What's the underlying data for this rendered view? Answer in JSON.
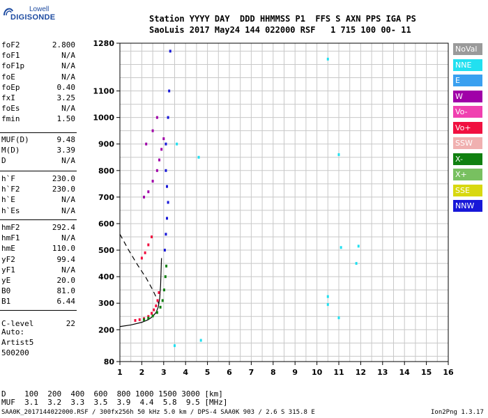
{
  "logo": {
    "line1": "Lowell",
    "line2": "DIGISONDE"
  },
  "header": {
    "row1": "Station YYYY DAY  DDD HHMMSS P1  FFS S AXN PPS IGA PS",
    "row2": "SaoLuis 2017 May24 144 022000 RSF   1 715 100 00- 11"
  },
  "params_group1": [
    {
      "key": "foF2",
      "value": "2.800"
    },
    {
      "key": "foF1",
      "value": "N/A"
    },
    {
      "key": "foF1p",
      "value": "N/A"
    },
    {
      "key": "foE",
      "value": "N/A"
    },
    {
      "key": "foEp",
      "value": "0.40"
    },
    {
      "key": "fxI",
      "value": "3.25"
    },
    {
      "key": "foEs",
      "value": "N/A"
    },
    {
      "key": "fmin",
      "value": "1.50"
    }
  ],
  "params_group2": [
    {
      "key": "MUF(D)",
      "value": "9.48"
    },
    {
      "key": "M(D)",
      "value": "3.39"
    },
    {
      "key": "D",
      "value": "N/A"
    }
  ],
  "params_group3": [
    {
      "key": "h`F",
      "value": "230.0"
    },
    {
      "key": "h`F2",
      "value": "230.0"
    },
    {
      "key": "h`E",
      "value": "N/A"
    },
    {
      "key": "h`Es",
      "value": "N/A"
    }
  ],
  "params_group4": [
    {
      "key": "hmF2",
      "value": "292.4"
    },
    {
      "key": "hmF1",
      "value": "N/A"
    },
    {
      "key": "hmE",
      "value": "110.0"
    },
    {
      "key": "yF2",
      "value": "99.4"
    },
    {
      "key": "yF1",
      "value": "N/A"
    },
    {
      "key": "yE",
      "value": "20.0"
    },
    {
      "key": "B0",
      "value": "81.0"
    },
    {
      "key": "B1",
      "value": "6.44"
    }
  ],
  "clevel": {
    "key": "C-level",
    "value": "22"
  },
  "autoscale": {
    "line1": "Auto:",
    "line2": "Artist5",
    "line3": "500200"
  },
  "legend": [
    {
      "label": "NoVal",
      "color": "#9a9a9a"
    },
    {
      "label": "NNE",
      "color": "#22e0f0"
    },
    {
      "label": "E",
      "color": "#3aa0f0"
    },
    {
      "label": "W",
      "color": "#a000a8"
    },
    {
      "label": "Vo-",
      "color": "#f040b0"
    },
    {
      "label": "Vo+",
      "color": "#f01040"
    },
    {
      "label": "SSW",
      "color": "#f0b0b0"
    },
    {
      "label": "X-",
      "color": "#108010"
    },
    {
      "label": "X+",
      "color": "#78c060"
    },
    {
      "label": "SSE",
      "color": "#d8d810"
    },
    {
      "label": "NNW",
      "color": "#1818d8"
    }
  ],
  "muf_table": {
    "row1": "D    100  200  400  600  800 1000 1500 3000 [km]",
    "row2": "MUF  3.1  3.2  3.3  3.5  3.9  4.4  5.8  9.5 [MHz]"
  },
  "footer": {
    "left": "SAA0K_2017144022000.RSF / 300fx256h 50 kHz 5.0 km / DPS-4 SAA0K 903 / 2.6 S 315.8 E",
    "right": "Ion2Png 1.3.17"
  },
  "chart_data": {
    "type": "scatter",
    "xlim": [
      1,
      16
    ],
    "ylim": [
      80,
      1280
    ],
    "x_ticks": [
      "1",
      "2",
      "3",
      "4",
      "5",
      "6",
      "7",
      "8",
      "9",
      "10",
      "11",
      "12",
      "13",
      "14",
      "15",
      "16"
    ],
    "y_ticks": [
      "80",
      "200",
      "300",
      "400",
      "500",
      "600",
      "700",
      "800",
      "900",
      "1000",
      "1100",
      "1280"
    ],
    "x_minor_step": 0.5,
    "y_grid_step": 50,
    "grid": true,
    "traces": [
      {
        "name": "o-trace",
        "color": "#f01040",
        "points": [
          [
            1.7,
            235
          ],
          [
            1.9,
            238
          ],
          [
            2.1,
            242
          ],
          [
            2.3,
            250
          ],
          [
            2.45,
            262
          ],
          [
            2.55,
            275
          ],
          [
            2.65,
            290
          ],
          [
            2.72,
            310
          ],
          [
            2.78,
            340
          ]
        ]
      },
      {
        "name": "x-trace",
        "color": "#108010",
        "points": [
          [
            2.1,
            238
          ],
          [
            2.3,
            244
          ],
          [
            2.5,
            252
          ],
          [
            2.7,
            265
          ],
          [
            2.85,
            285
          ],
          [
            2.95,
            310
          ],
          [
            3.02,
            350
          ],
          [
            3.08,
            400
          ],
          [
            3.12,
            440
          ]
        ]
      },
      {
        "name": "o-trace-2",
        "color": "#f01040",
        "points": [
          [
            2.0,
            470
          ],
          [
            2.15,
            490
          ],
          [
            2.3,
            520
          ],
          [
            2.45,
            550
          ]
        ]
      },
      {
        "name": "vertical-echo",
        "color": "#1818d8",
        "points": [
          [
            3.05,
            500
          ],
          [
            3.1,
            560
          ],
          [
            3.15,
            620
          ],
          [
            3.2,
            680
          ],
          [
            3.15,
            740
          ],
          [
            3.1,
            800
          ],
          [
            3.1,
            900
          ],
          [
            3.2,
            1000
          ],
          [
            3.25,
            1100
          ],
          [
            3.3,
            1250
          ]
        ]
      },
      {
        "name": "multi-hop",
        "color": "#a000a8",
        "points": [
          [
            2.1,
            700
          ],
          [
            2.3,
            720
          ],
          [
            2.5,
            760
          ],
          [
            2.7,
            800
          ],
          [
            2.8,
            840
          ],
          [
            2.9,
            880
          ],
          [
            3.0,
            920
          ],
          [
            2.2,
            900
          ],
          [
            2.5,
            950
          ],
          [
            2.7,
            1000
          ]
        ]
      },
      {
        "name": "sporadic",
        "color": "#22e0f0",
        "points": [
          [
            3.6,
            900
          ],
          [
            4.6,
            850
          ],
          [
            4.7,
            160
          ],
          [
            10.5,
            1220
          ],
          [
            11.0,
            860
          ],
          [
            11.1,
            510
          ],
          [
            11.8,
            450
          ],
          [
            11.9,
            515
          ],
          [
            10.5,
            325
          ],
          [
            10.5,
            295
          ],
          [
            11.0,
            245
          ],
          [
            3.5,
            140
          ]
        ]
      }
    ],
    "profile_solid": [
      [
        1.0,
        212
      ],
      [
        1.5,
        218
      ],
      [
        2.0,
        228
      ],
      [
        2.3,
        238
      ],
      [
        2.5,
        250
      ],
      [
        2.65,
        265
      ],
      [
        2.75,
        285
      ],
      [
        2.82,
        320
      ],
      [
        2.86,
        370
      ],
      [
        2.88,
        420
      ],
      [
        2.9,
        470
      ]
    ],
    "profile_dashed": [
      [
        1.0,
        560
      ],
      [
        1.4,
        500
      ],
      [
        1.8,
        445
      ],
      [
        2.2,
        395
      ],
      [
        2.5,
        350
      ],
      [
        2.7,
        315
      ],
      [
        2.8,
        292
      ]
    ]
  }
}
